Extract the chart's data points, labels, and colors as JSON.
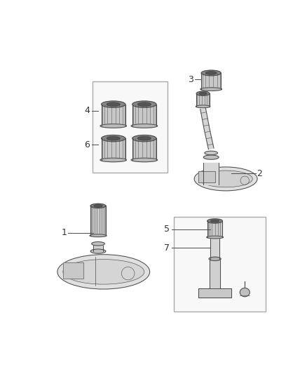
{
  "bg_color": "#ffffff",
  "line_color": "#4a4a4a",
  "label_color": "#333333",
  "box_edge_color": "#aaaaaa",
  "box_fill": "#f8f8f8",
  "fill_light": "#e8e8e8",
  "fill_mid": "#d0d0d0",
  "fill_dark": "#b0b0b0",
  "font_size": 9,
  "figsize": [
    4.38,
    5.33
  ],
  "dpi": 100,
  "lw": 0.7
}
